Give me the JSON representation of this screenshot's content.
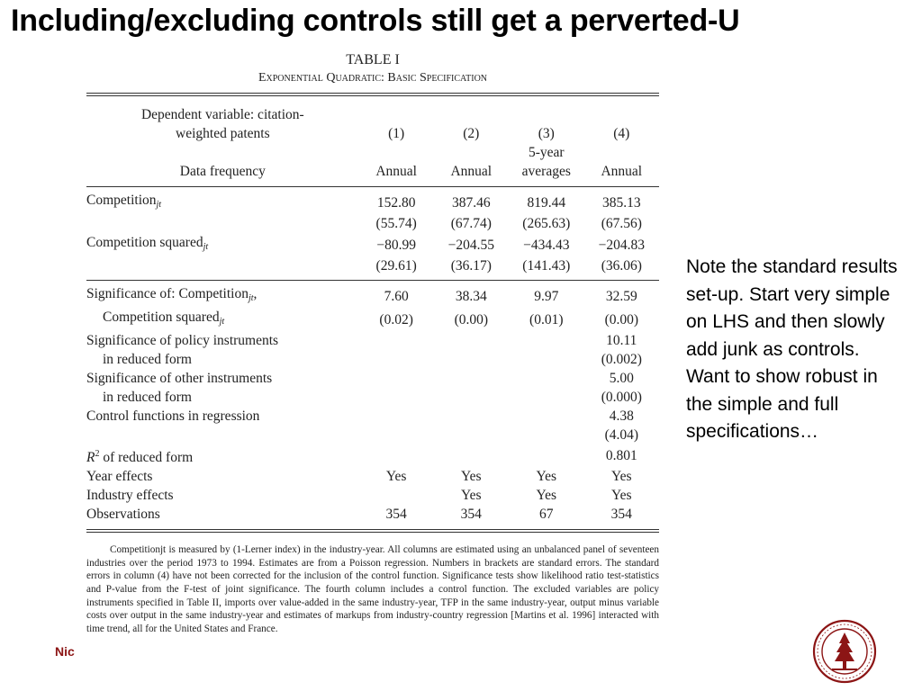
{
  "slide": {
    "title": "Including/excluding controls still get a perverted-U",
    "footer": "Nic"
  },
  "table": {
    "title": "TABLE I",
    "subtitle": "Exponential Quadratic: Basic Specification",
    "header": {
      "depvar_line1": "Dependent variable: citation-",
      "depvar_line2": "weighted patents",
      "columns": [
        "(1)",
        "(2)",
        "(3)",
        "(4)"
      ],
      "freq_label": "Data frequency",
      "freq": [
        {
          "line1": "",
          "line2": "Annual"
        },
        {
          "line1": "",
          "line2": "Annual"
        },
        {
          "line1": "5-year",
          "line2": "averages"
        },
        {
          "line1": "",
          "line2": "Annual"
        }
      ]
    },
    "rows": [
      {
        "label": "Competition",
        "sub": "jt",
        "values": [
          "152.80",
          "387.46",
          "819.44",
          "385.13"
        ]
      },
      {
        "label": "",
        "sub": "",
        "values": [
          "(55.74)",
          "(67.74)",
          "(265.63)",
          "(67.56)"
        ]
      },
      {
        "label": "Competition squared",
        "sub": "jt",
        "values": [
          "−80.99",
          "−204.55",
          "−434.43",
          "−204.83"
        ]
      },
      {
        "label": "",
        "sub": "",
        "values": [
          "(29.61)",
          "(36.17)",
          "(141.43)",
          "(36.06)"
        ]
      }
    ],
    "tests": [
      {
        "label": "Significance of: Competition",
        "sub": "jt",
        "suffix": ",",
        "indent": false,
        "values": [
          "7.60",
          "38.34",
          "9.97",
          "32.59"
        ]
      },
      {
        "label": "Competition squared",
        "sub": "jt",
        "suffix": "",
        "indent": true,
        "values": [
          "(0.02)",
          "(0.00)",
          "(0.01)",
          "(0.00)"
        ]
      },
      {
        "label": "Significance of policy instruments",
        "sub": "",
        "suffix": "",
        "indent": false,
        "values": [
          "",
          "",
          "",
          "10.11"
        ]
      },
      {
        "label": "in reduced form",
        "sub": "",
        "suffix": "",
        "indent": true,
        "values": [
          "",
          "",
          "",
          "(0.002)"
        ]
      },
      {
        "label": "Significance of other instruments",
        "sub": "",
        "suffix": "",
        "indent": false,
        "values": [
          "",
          "",
          "",
          "5.00"
        ]
      },
      {
        "label": "in reduced form",
        "sub": "",
        "suffix": "",
        "indent": true,
        "values": [
          "",
          "",
          "",
          "(0.000)"
        ]
      },
      {
        "label": "Control functions in regression",
        "sub": "",
        "suffix": "",
        "indent": false,
        "values": [
          "",
          "",
          "",
          "4.38"
        ]
      },
      {
        "label": "",
        "sub": "",
        "suffix": "",
        "indent": false,
        "values": [
          "",
          "",
          "",
          "(4.04)"
        ]
      },
      {
        "label": "R² of reduced form",
        "sub": "",
        "suffix": "",
        "indent": false,
        "values": [
          "",
          "",
          "",
          "0.801"
        ]
      },
      {
        "label": "Year effects",
        "sub": "",
        "suffix": "",
        "indent": false,
        "values": [
          "Yes",
          "Yes",
          "Yes",
          "Yes"
        ]
      },
      {
        "label": "Industry effects",
        "sub": "",
        "suffix": "",
        "indent": false,
        "values": [
          "",
          "Yes",
          "Yes",
          "Yes"
        ]
      },
      {
        "label": "Observations",
        "sub": "",
        "suffix": "",
        "indent": false,
        "values": [
          "354",
          "354",
          "67",
          "354"
        ]
      }
    ],
    "notes": "Competitionjt is measured by (1-Lerner index) in the industry-year. All columns are estimated using an unbalanced panel of seventeen industries over the period 1973 to 1994. Estimates are from a Poisson regression. Numbers in brackets are standard errors. The standard errors in column (4) have not been corrected for the inclusion of the control function. Significance tests show likelihood ratio test-statistics and P-value from the F-test of joint significance. The fourth column includes a control function. The excluded variables are policy instruments specified in Table II, imports over value-added in the same industry-year, TFP in the same industry-year, output minus variable costs over output in the same industry-year and estimates of markups from industry-country regression [Martins et al. 1996] interacted with time trend, all for the United States and France."
  },
  "side_note": "Note the standard results set-up. Start very simple on LHS and then slowly add junk as controls. Want to show robust in the simple and full specifications…",
  "logo": {
    "icon": "university-seal-icon",
    "color": "#8c1515"
  }
}
